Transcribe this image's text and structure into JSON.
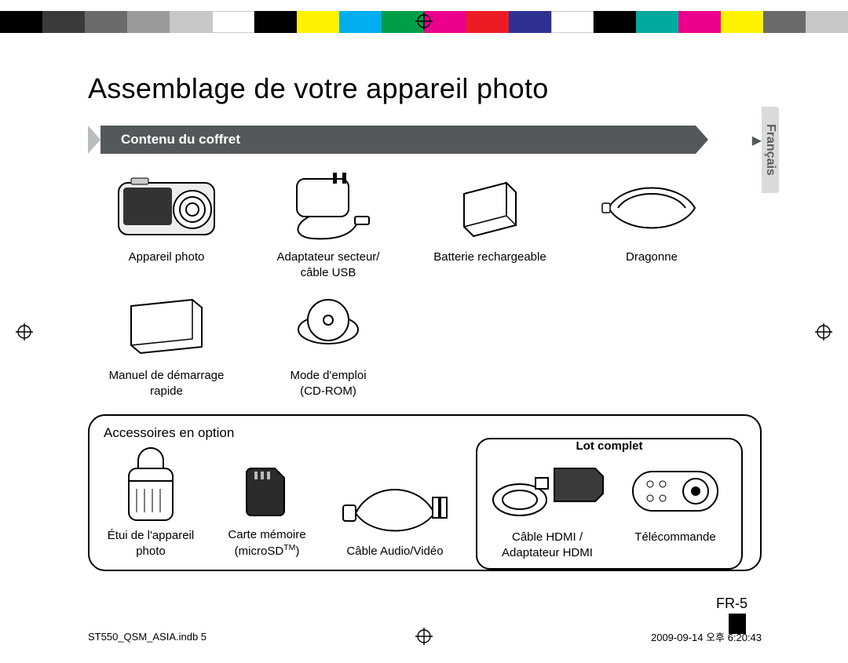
{
  "color_strip": [
    "#000000",
    "#3a3a3a",
    "#6b6b6b",
    "#9a9a9a",
    "#c7c7c7",
    "#ffffff",
    "#000000",
    "#fff200",
    "#00aeef",
    "#009e49",
    "#ec008c",
    "#ed1c24",
    "#2e3192",
    "#ffffff",
    "#000000",
    "#00a99d",
    "#ec008c",
    "#fff200",
    "#6b6b6b",
    "#c7c7c7"
  ],
  "title": "Assemblage de votre appareil photo",
  "ribbon_label": "Contenu du coffret",
  "lang_tab": "Français",
  "included": [
    {
      "label": "Appareil photo"
    },
    {
      "label": "Adaptateur secteur/\ncâble USB"
    },
    {
      "label": "Batterie rechargeable"
    },
    {
      "label": "Dragonne"
    },
    {
      "label": "Manuel de démarrage\nrapide"
    },
    {
      "label": "Mode d'emploi\n(CD-ROM)"
    }
  ],
  "optional_title": "Accessoires en option",
  "lot_label": "Lot complet",
  "optional": [
    {
      "label": "Étui de l'appareil\nphoto",
      "w": 120
    },
    {
      "label": "Carte mémoire\n(microSD™)",
      "w": 128
    },
    {
      "label": "Câble Audio/Vidéo",
      "w": 150
    }
  ],
  "lot": [
    {
      "label": "Câble HDMI /\nAdaptateur HDMI",
      "w": 150
    },
    {
      "label": "Télécommande",
      "w": 140
    }
  ],
  "page_number": "FR-5",
  "footer_left": "ST550_QSM_ASIA.indb   5",
  "footer_right": "2009-09-14   오후 6:20:43",
  "colors": {
    "ribbon": "#53585b",
    "ribbon_tail": "#b9bcbe",
    "lang_tab": "#d8dadb"
  }
}
